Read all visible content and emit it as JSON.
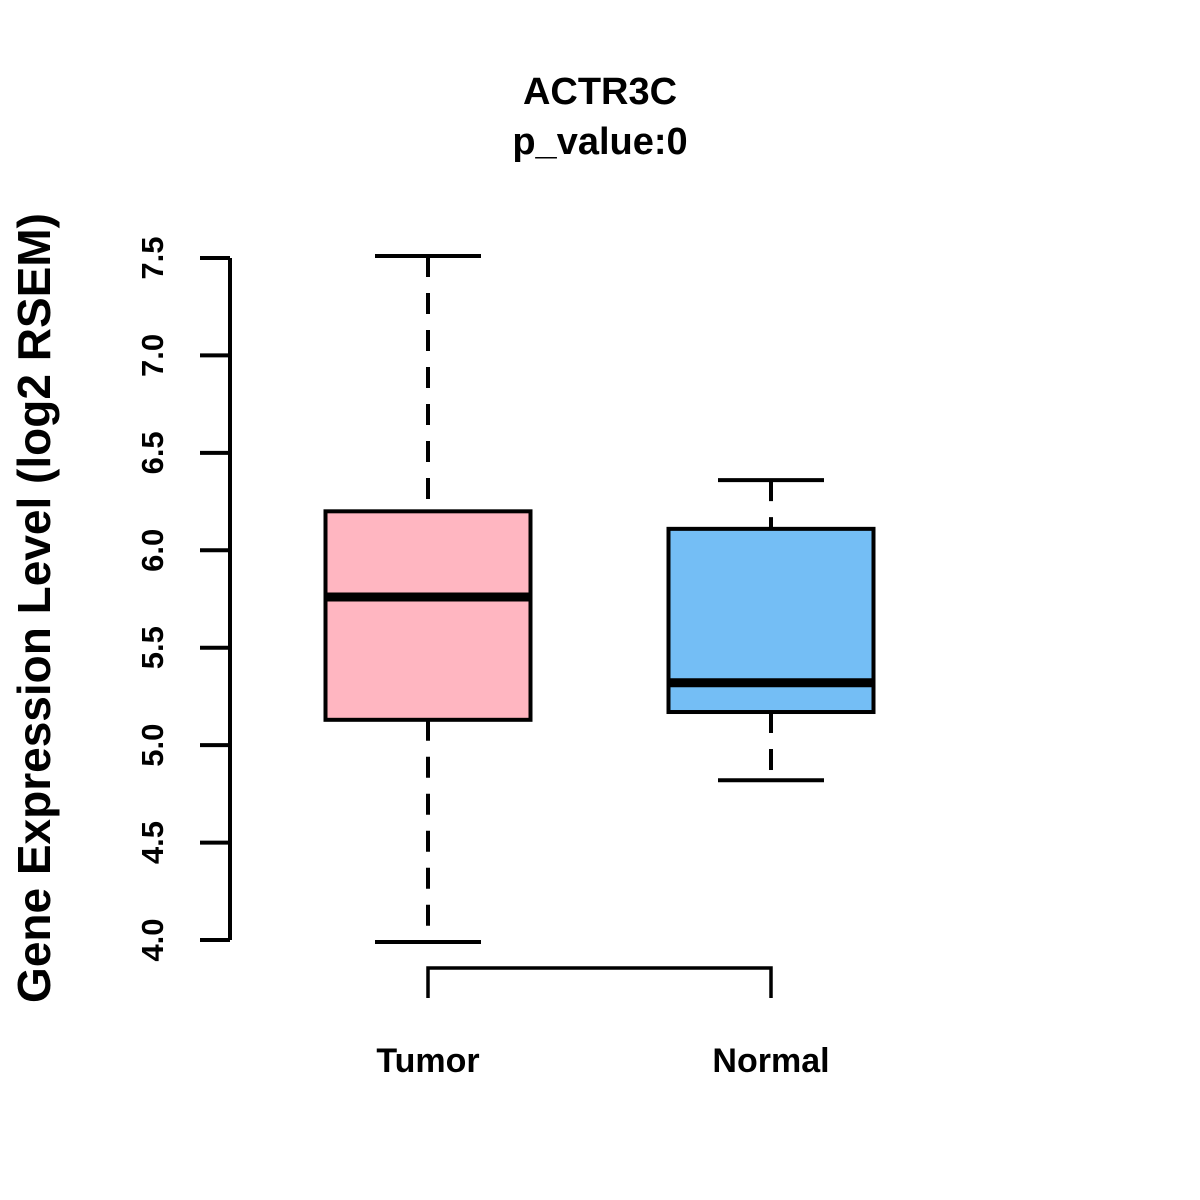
{
  "figure": {
    "background_color": "#FFFFFF",
    "line_color": "#000000"
  },
  "chart_data": {
    "type": "boxplot",
    "title": "ACTR3C",
    "subtitle": "p_value:0",
    "ylabel": "Gene Expression Level (log2 RSEM)",
    "xlabel": "",
    "ylim": [
      4.0,
      7.5
    ],
    "yticks": [
      4.0,
      4.5,
      5.0,
      5.5,
      6.0,
      6.5,
      7.0,
      7.5
    ],
    "ytick_labels": [
      "4.0",
      "4.5",
      "5.0",
      "5.5",
      "6.0",
      "6.5",
      "7.0",
      "7.5"
    ],
    "categories": [
      "Tumor",
      "Normal"
    ],
    "grid": false,
    "legend_position": "none",
    "groups": [
      {
        "label": "Tumor",
        "fill_color": "#FFB6C1",
        "whisker_low": 3.99,
        "q1": 5.13,
        "median": 5.76,
        "q3": 6.2,
        "whisker_high": 7.51
      },
      {
        "label": "Normal",
        "fill_color": "#74BEF5",
        "whisker_low": 4.82,
        "q1": 5.17,
        "median": 5.32,
        "q3": 6.11,
        "whisker_high": 6.36
      }
    ],
    "annotations": {
      "comparison_bracket": "between Tumor and Normal below axis"
    }
  }
}
